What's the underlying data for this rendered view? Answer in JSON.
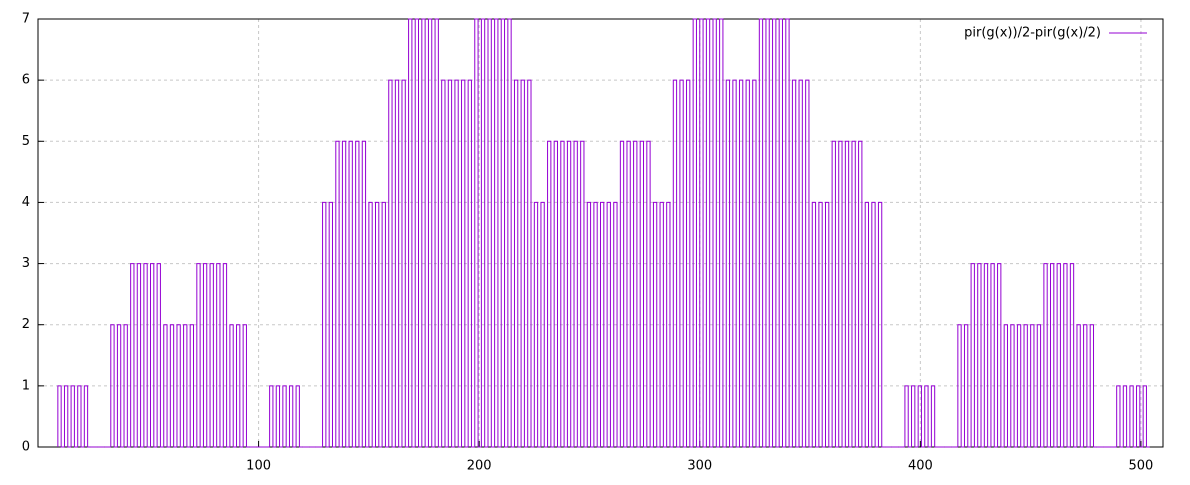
{
  "chart_data": {
    "type": "pulse",
    "color": "#9400d3",
    "grid": true,
    "legend": "top-right",
    "series": [
      {
        "name": "pir(g(x))/2-pir(g(x)/2)",
        "color": "#9400d3",
        "x": [
          9,
          12,
          15,
          18,
          21,
          24,
          27,
          30,
          33,
          36,
          39,
          42,
          45,
          48,
          51,
          54,
          57,
          60,
          63,
          66,
          69,
          72,
          75,
          78,
          81,
          84,
          87,
          90,
          93,
          96,
          99,
          102,
          105,
          108,
          111,
          114,
          117,
          120,
          123,
          126,
          129,
          132,
          135,
          138,
          141,
          144,
          147,
          150,
          153,
          156,
          159,
          162,
          165,
          168,
          171,
          174,
          177,
          180,
          183,
          186,
          189,
          192,
          195,
          198,
          201,
          204,
          207,
          210,
          213,
          216,
          219,
          222,
          225,
          228,
          231,
          234,
          237,
          240,
          243,
          246,
          249,
          252,
          255,
          258,
          261,
          264,
          267,
          270,
          273,
          276,
          279,
          282,
          285,
          288,
          291,
          294,
          297,
          300,
          303,
          306,
          309,
          312,
          315,
          318,
          321,
          324,
          327,
          330,
          333,
          336,
          339,
          342,
          345,
          348,
          351,
          354,
          357,
          360,
          363,
          366,
          369,
          372,
          375,
          378,
          381,
          384,
          387,
          390,
          393,
          396,
          399,
          402,
          405,
          408,
          411,
          414,
          417,
          420,
          423,
          426,
          429,
          432,
          435,
          438,
          441,
          444,
          447,
          450,
          453,
          456,
          459,
          462,
          465,
          468,
          471,
          474,
          477,
          480,
          483,
          486,
          489,
          492,
          495,
          498,
          501
        ],
        "values": [
          1,
          1,
          1,
          1,
          1,
          0,
          0,
          0,
          2,
          2,
          2,
          3,
          3,
          3,
          3,
          3,
          2,
          2,
          2,
          2,
          2,
          3,
          3,
          3,
          3,
          3,
          2,
          2,
          2,
          0,
          0,
          0,
          1,
          1,
          1,
          1,
          1,
          0,
          0,
          0,
          4,
          4,
          5,
          5,
          5,
          5,
          5,
          4,
          4,
          4,
          6,
          6,
          6,
          7,
          7,
          7,
          7,
          7,
          6,
          6,
          6,
          6,
          6,
          7,
          7,
          7,
          7,
          7,
          7,
          6,
          6,
          6,
          4,
          4,
          5,
          5,
          5,
          5,
          5,
          5,
          4,
          4,
          4,
          4,
          4,
          5,
          5,
          5,
          5,
          5,
          4,
          4,
          4,
          6,
          6,
          6,
          7,
          7,
          7,
          7,
          7,
          6,
          6,
          6,
          6,
          6,
          7,
          7,
          7,
          7,
          7,
          6,
          6,
          6,
          4,
          4,
          4,
          5,
          5,
          5,
          5,
          5,
          4,
          4,
          4,
          0,
          0,
          0,
          1,
          1,
          1,
          1,
          1,
          0,
          0,
          0,
          2,
          2,
          3,
          3,
          3,
          3,
          3,
          2,
          2,
          2,
          2,
          2,
          2,
          3,
          3,
          3,
          3,
          3,
          2,
          2,
          2,
          0,
          0,
          0,
          1,
          1,
          1,
          1,
          1
        ]
      }
    ],
    "xlim": [
      0,
      510
    ],
    "ylim": [
      0,
      7
    ],
    "xticks": [
      100,
      200,
      300,
      400,
      500
    ],
    "yticks": [
      0,
      1,
      2,
      3,
      4,
      5,
      6,
      7
    ]
  }
}
